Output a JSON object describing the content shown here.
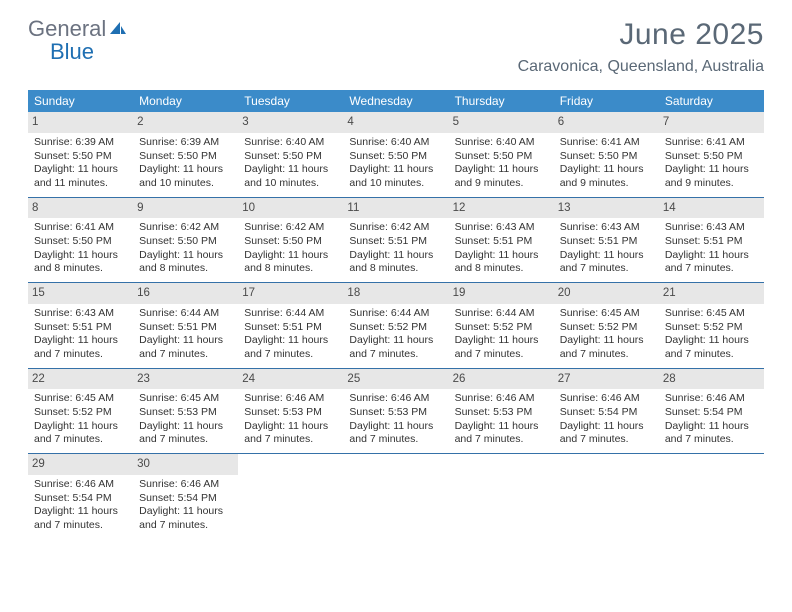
{
  "brand": {
    "word1": "General",
    "word2": "Blue",
    "color_gray": "#6b7280",
    "color_blue": "#1f6fb2",
    "icon_fill": "#1f6fb2"
  },
  "title": "June 2025",
  "location": "Caravonica, Queensland, Australia",
  "colors": {
    "header_bg": "#3b8bc9",
    "header_text": "#ffffff",
    "daynum_bg": "#e7e7e7",
    "body_text": "#333333",
    "rule": "#3571a8",
    "title_text": "#5a6876"
  },
  "weekdays": [
    "Sunday",
    "Monday",
    "Tuesday",
    "Wednesday",
    "Thursday",
    "Friday",
    "Saturday"
  ],
  "weeks": [
    [
      {
        "n": "1",
        "sr": "Sunrise: 6:39 AM",
        "ss": "Sunset: 5:50 PM",
        "d1": "Daylight: 11 hours",
        "d2": "and 11 minutes."
      },
      {
        "n": "2",
        "sr": "Sunrise: 6:39 AM",
        "ss": "Sunset: 5:50 PM",
        "d1": "Daylight: 11 hours",
        "d2": "and 10 minutes."
      },
      {
        "n": "3",
        "sr": "Sunrise: 6:40 AM",
        "ss": "Sunset: 5:50 PM",
        "d1": "Daylight: 11 hours",
        "d2": "and 10 minutes."
      },
      {
        "n": "4",
        "sr": "Sunrise: 6:40 AM",
        "ss": "Sunset: 5:50 PM",
        "d1": "Daylight: 11 hours",
        "d2": "and 10 minutes."
      },
      {
        "n": "5",
        "sr": "Sunrise: 6:40 AM",
        "ss": "Sunset: 5:50 PM",
        "d1": "Daylight: 11 hours",
        "d2": "and 9 minutes."
      },
      {
        "n": "6",
        "sr": "Sunrise: 6:41 AM",
        "ss": "Sunset: 5:50 PM",
        "d1": "Daylight: 11 hours",
        "d2": "and 9 minutes."
      },
      {
        "n": "7",
        "sr": "Sunrise: 6:41 AM",
        "ss": "Sunset: 5:50 PM",
        "d1": "Daylight: 11 hours",
        "d2": "and 9 minutes."
      }
    ],
    [
      {
        "n": "8",
        "sr": "Sunrise: 6:41 AM",
        "ss": "Sunset: 5:50 PM",
        "d1": "Daylight: 11 hours",
        "d2": "and 8 minutes."
      },
      {
        "n": "9",
        "sr": "Sunrise: 6:42 AM",
        "ss": "Sunset: 5:50 PM",
        "d1": "Daylight: 11 hours",
        "d2": "and 8 minutes."
      },
      {
        "n": "10",
        "sr": "Sunrise: 6:42 AM",
        "ss": "Sunset: 5:50 PM",
        "d1": "Daylight: 11 hours",
        "d2": "and 8 minutes."
      },
      {
        "n": "11",
        "sr": "Sunrise: 6:42 AM",
        "ss": "Sunset: 5:51 PM",
        "d1": "Daylight: 11 hours",
        "d2": "and 8 minutes."
      },
      {
        "n": "12",
        "sr": "Sunrise: 6:43 AM",
        "ss": "Sunset: 5:51 PM",
        "d1": "Daylight: 11 hours",
        "d2": "and 8 minutes."
      },
      {
        "n": "13",
        "sr": "Sunrise: 6:43 AM",
        "ss": "Sunset: 5:51 PM",
        "d1": "Daylight: 11 hours",
        "d2": "and 7 minutes."
      },
      {
        "n": "14",
        "sr": "Sunrise: 6:43 AM",
        "ss": "Sunset: 5:51 PM",
        "d1": "Daylight: 11 hours",
        "d2": "and 7 minutes."
      }
    ],
    [
      {
        "n": "15",
        "sr": "Sunrise: 6:43 AM",
        "ss": "Sunset: 5:51 PM",
        "d1": "Daylight: 11 hours",
        "d2": "and 7 minutes."
      },
      {
        "n": "16",
        "sr": "Sunrise: 6:44 AM",
        "ss": "Sunset: 5:51 PM",
        "d1": "Daylight: 11 hours",
        "d2": "and 7 minutes."
      },
      {
        "n": "17",
        "sr": "Sunrise: 6:44 AM",
        "ss": "Sunset: 5:51 PM",
        "d1": "Daylight: 11 hours",
        "d2": "and 7 minutes."
      },
      {
        "n": "18",
        "sr": "Sunrise: 6:44 AM",
        "ss": "Sunset: 5:52 PM",
        "d1": "Daylight: 11 hours",
        "d2": "and 7 minutes."
      },
      {
        "n": "19",
        "sr": "Sunrise: 6:44 AM",
        "ss": "Sunset: 5:52 PM",
        "d1": "Daylight: 11 hours",
        "d2": "and 7 minutes."
      },
      {
        "n": "20",
        "sr": "Sunrise: 6:45 AM",
        "ss": "Sunset: 5:52 PM",
        "d1": "Daylight: 11 hours",
        "d2": "and 7 minutes."
      },
      {
        "n": "21",
        "sr": "Sunrise: 6:45 AM",
        "ss": "Sunset: 5:52 PM",
        "d1": "Daylight: 11 hours",
        "d2": "and 7 minutes."
      }
    ],
    [
      {
        "n": "22",
        "sr": "Sunrise: 6:45 AM",
        "ss": "Sunset: 5:52 PM",
        "d1": "Daylight: 11 hours",
        "d2": "and 7 minutes."
      },
      {
        "n": "23",
        "sr": "Sunrise: 6:45 AM",
        "ss": "Sunset: 5:53 PM",
        "d1": "Daylight: 11 hours",
        "d2": "and 7 minutes."
      },
      {
        "n": "24",
        "sr": "Sunrise: 6:46 AM",
        "ss": "Sunset: 5:53 PM",
        "d1": "Daylight: 11 hours",
        "d2": "and 7 minutes."
      },
      {
        "n": "25",
        "sr": "Sunrise: 6:46 AM",
        "ss": "Sunset: 5:53 PM",
        "d1": "Daylight: 11 hours",
        "d2": "and 7 minutes."
      },
      {
        "n": "26",
        "sr": "Sunrise: 6:46 AM",
        "ss": "Sunset: 5:53 PM",
        "d1": "Daylight: 11 hours",
        "d2": "and 7 minutes."
      },
      {
        "n": "27",
        "sr": "Sunrise: 6:46 AM",
        "ss": "Sunset: 5:54 PM",
        "d1": "Daylight: 11 hours",
        "d2": "and 7 minutes."
      },
      {
        "n": "28",
        "sr": "Sunrise: 6:46 AM",
        "ss": "Sunset: 5:54 PM",
        "d1": "Daylight: 11 hours",
        "d2": "and 7 minutes."
      }
    ],
    [
      {
        "n": "29",
        "sr": "Sunrise: 6:46 AM",
        "ss": "Sunset: 5:54 PM",
        "d1": "Daylight: 11 hours",
        "d2": "and 7 minutes."
      },
      {
        "n": "30",
        "sr": "Sunrise: 6:46 AM",
        "ss": "Sunset: 5:54 PM",
        "d1": "Daylight: 11 hours",
        "d2": "and 7 minutes."
      },
      null,
      null,
      null,
      null,
      null
    ]
  ]
}
